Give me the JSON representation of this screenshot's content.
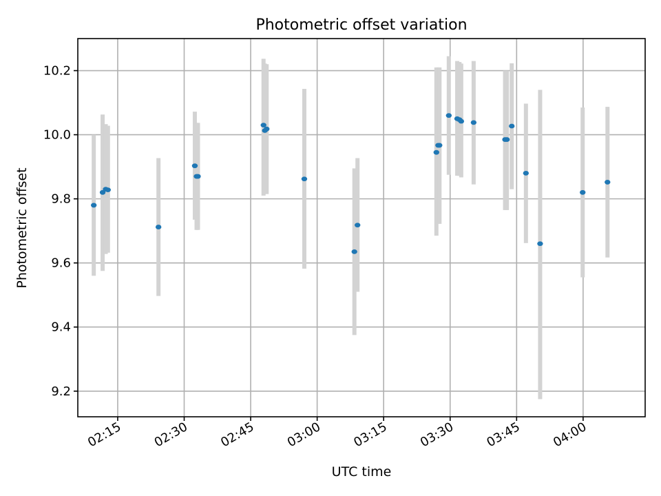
{
  "chart_data": {
    "type": "scatter",
    "title": "Photometric offset variation",
    "xlabel": "UTC time",
    "ylabel": "Photometric offset",
    "xlim": [
      "02:06",
      "04:14"
    ],
    "ylim": [
      9.12,
      10.3
    ],
    "x_ticks": [
      "02:15",
      "02:30",
      "02:45",
      "03:00",
      "03:15",
      "03:30",
      "03:45",
      "04:00"
    ],
    "y_ticks": [
      "9.2",
      "9.4",
      "9.6",
      "9.8",
      "10.0",
      "10.2"
    ],
    "grid": true,
    "colors": {
      "points": "#1f77b4",
      "error_bars": "#d3d3d3",
      "grid": "#b0b0b0"
    },
    "points": [
      {
        "time": "02:09:36",
        "y": 9.78,
        "low": 9.56,
        "high": 10.0
      },
      {
        "time": "02:11:36",
        "y": 9.82,
        "low": 9.575,
        "high": 10.063
      },
      {
        "time": "02:12:18",
        "y": 9.83,
        "low": 9.628,
        "high": 10.033
      },
      {
        "time": "02:12:48",
        "y": 9.828,
        "low": 9.632,
        "high": 10.028
      },
      {
        "time": "02:24:12",
        "y": 9.712,
        "low": 9.497,
        "high": 9.927
      },
      {
        "time": "02:32:24",
        "y": 9.903,
        "low": 9.735,
        "high": 10.072
      },
      {
        "time": "02:32:48",
        "y": 9.87,
        "low": 9.703,
        "high": 10.037
      },
      {
        "time": "02:33:06",
        "y": 9.87,
        "low": 9.703,
        "high": 10.037
      },
      {
        "time": "02:47:54",
        "y": 10.03,
        "low": 9.81,
        "high": 10.237
      },
      {
        "time": "02:48:12",
        "y": 10.013,
        "low": 9.815,
        "high": 10.222
      },
      {
        "time": "02:48:36",
        "y": 10.018,
        "low": 9.815,
        "high": 10.22
      },
      {
        "time": "02:57:06",
        "y": 9.862,
        "low": 9.582,
        "high": 10.143
      },
      {
        "time": "03:08:24",
        "y": 9.635,
        "low": 9.375,
        "high": 9.895
      },
      {
        "time": "03:09:06",
        "y": 9.718,
        "low": 9.51,
        "high": 9.927
      },
      {
        "time": "03:26:54",
        "y": 9.945,
        "low": 9.685,
        "high": 10.21
      },
      {
        "time": "03:27:18",
        "y": 9.967,
        "low": 9.722,
        "high": 10.21
      },
      {
        "time": "03:27:36",
        "y": 9.967,
        "low": 9.722,
        "high": 10.21
      },
      {
        "time": "03:29:42",
        "y": 10.06,
        "low": 9.875,
        "high": 10.245
      },
      {
        "time": "03:31:36",
        "y": 10.05,
        "low": 9.872,
        "high": 10.23
      },
      {
        "time": "03:32:06",
        "y": 10.047,
        "low": 9.872,
        "high": 10.227
      },
      {
        "time": "03:32:30",
        "y": 10.042,
        "low": 9.867,
        "high": 10.222
      },
      {
        "time": "03:35:18",
        "y": 10.038,
        "low": 9.845,
        "high": 10.23
      },
      {
        "time": "03:42:24",
        "y": 9.985,
        "low": 9.765,
        "high": 10.2
      },
      {
        "time": "03:42:48",
        "y": 9.985,
        "low": 9.765,
        "high": 10.2
      },
      {
        "time": "03:43:54",
        "y": 10.027,
        "low": 9.83,
        "high": 10.223
      },
      {
        "time": "03:47:06",
        "y": 9.88,
        "low": 9.662,
        "high": 10.097
      },
      {
        "time": "03:50:18",
        "y": 9.66,
        "low": 9.175,
        "high": 10.14
      },
      {
        "time": "03:59:54",
        "y": 9.82,
        "low": 9.555,
        "high": 10.085
      },
      {
        "time": "04:05:30",
        "y": 9.852,
        "low": 9.617,
        "high": 10.087
      }
    ]
  }
}
